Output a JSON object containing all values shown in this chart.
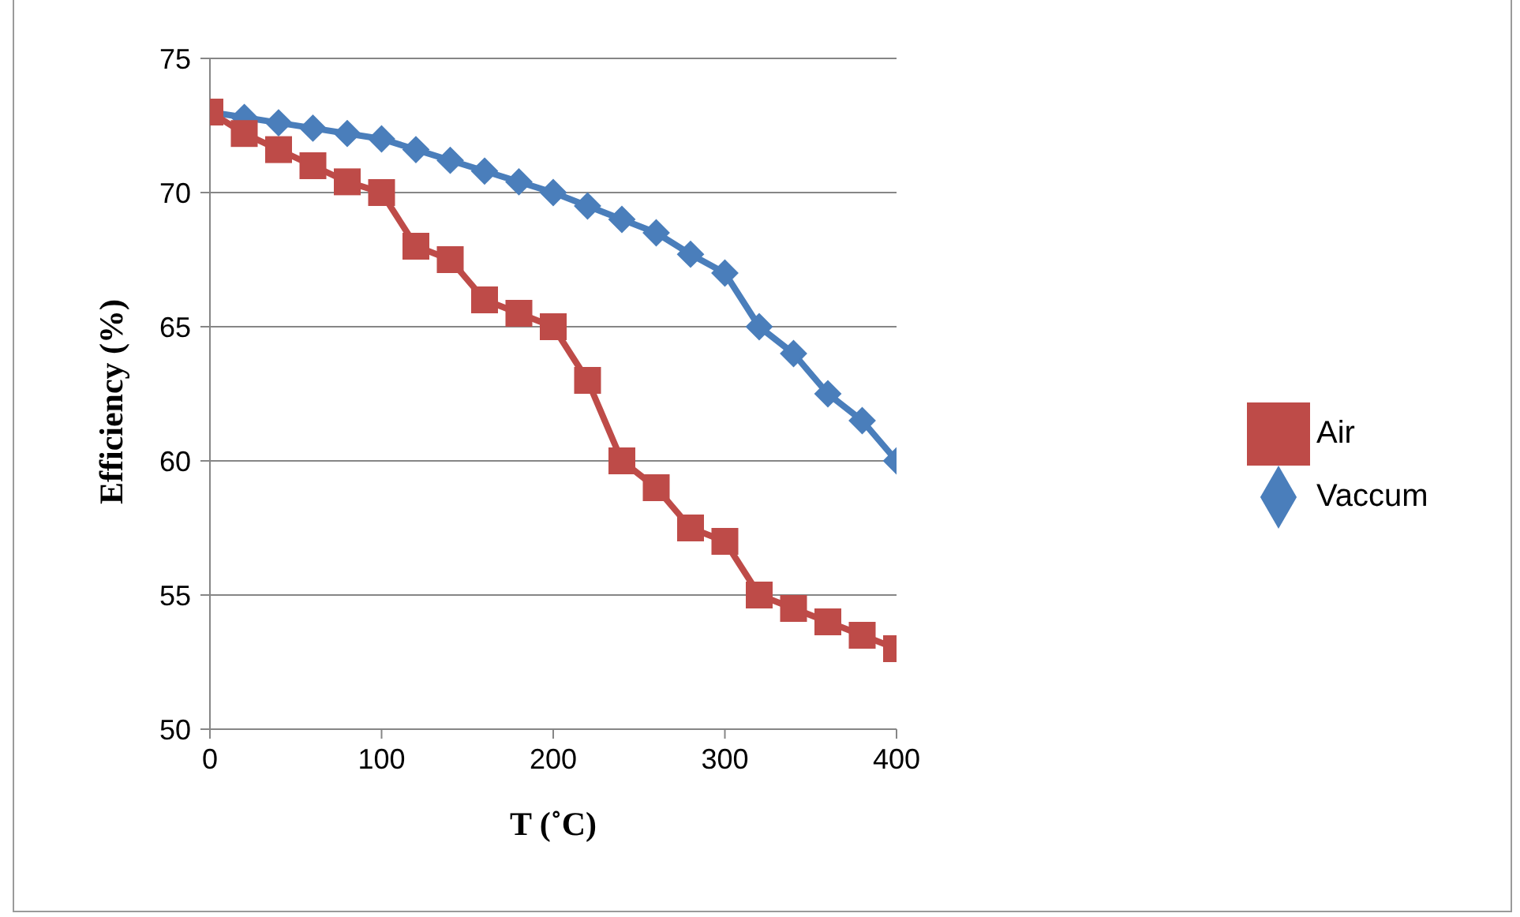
{
  "chart_data": {
    "type": "line",
    "xlabel": "T (˚C)",
    "ylabel": "Efficiency (%)",
    "x": [
      0,
      20,
      40,
      60,
      80,
      100,
      120,
      140,
      160,
      180,
      200,
      220,
      240,
      260,
      280,
      300,
      320,
      340,
      360,
      380,
      400
    ],
    "series": [
      {
        "name": "Vaccum",
        "color": "#4a7ebb",
        "marker": "diamond",
        "values": [
          73,
          72.8,
          72.6,
          72.4,
          72.2,
          72,
          71.6,
          71.2,
          70.8,
          70.4,
          70,
          69.5,
          69,
          68.5,
          67.7,
          67,
          65,
          64,
          62.5,
          61.5,
          60
        ]
      },
      {
        "name": "Air",
        "color": "#be4b48",
        "marker": "square",
        "values": [
          73,
          72.2,
          71.6,
          71,
          70.4,
          70,
          68,
          67.5,
          66,
          65.5,
          65,
          63,
          60,
          59,
          57.5,
          57,
          55,
          54.5,
          54,
          53.5,
          53
        ]
      }
    ],
    "xlim": [
      0,
      400
    ],
    "xticks": [
      0,
      100,
      200,
      300,
      400
    ],
    "ylim": [
      50,
      75
    ],
    "yticks": [
      50,
      55,
      60,
      65,
      70,
      75
    ],
    "grid": "y",
    "legend": "right",
    "line_style": "solid"
  }
}
